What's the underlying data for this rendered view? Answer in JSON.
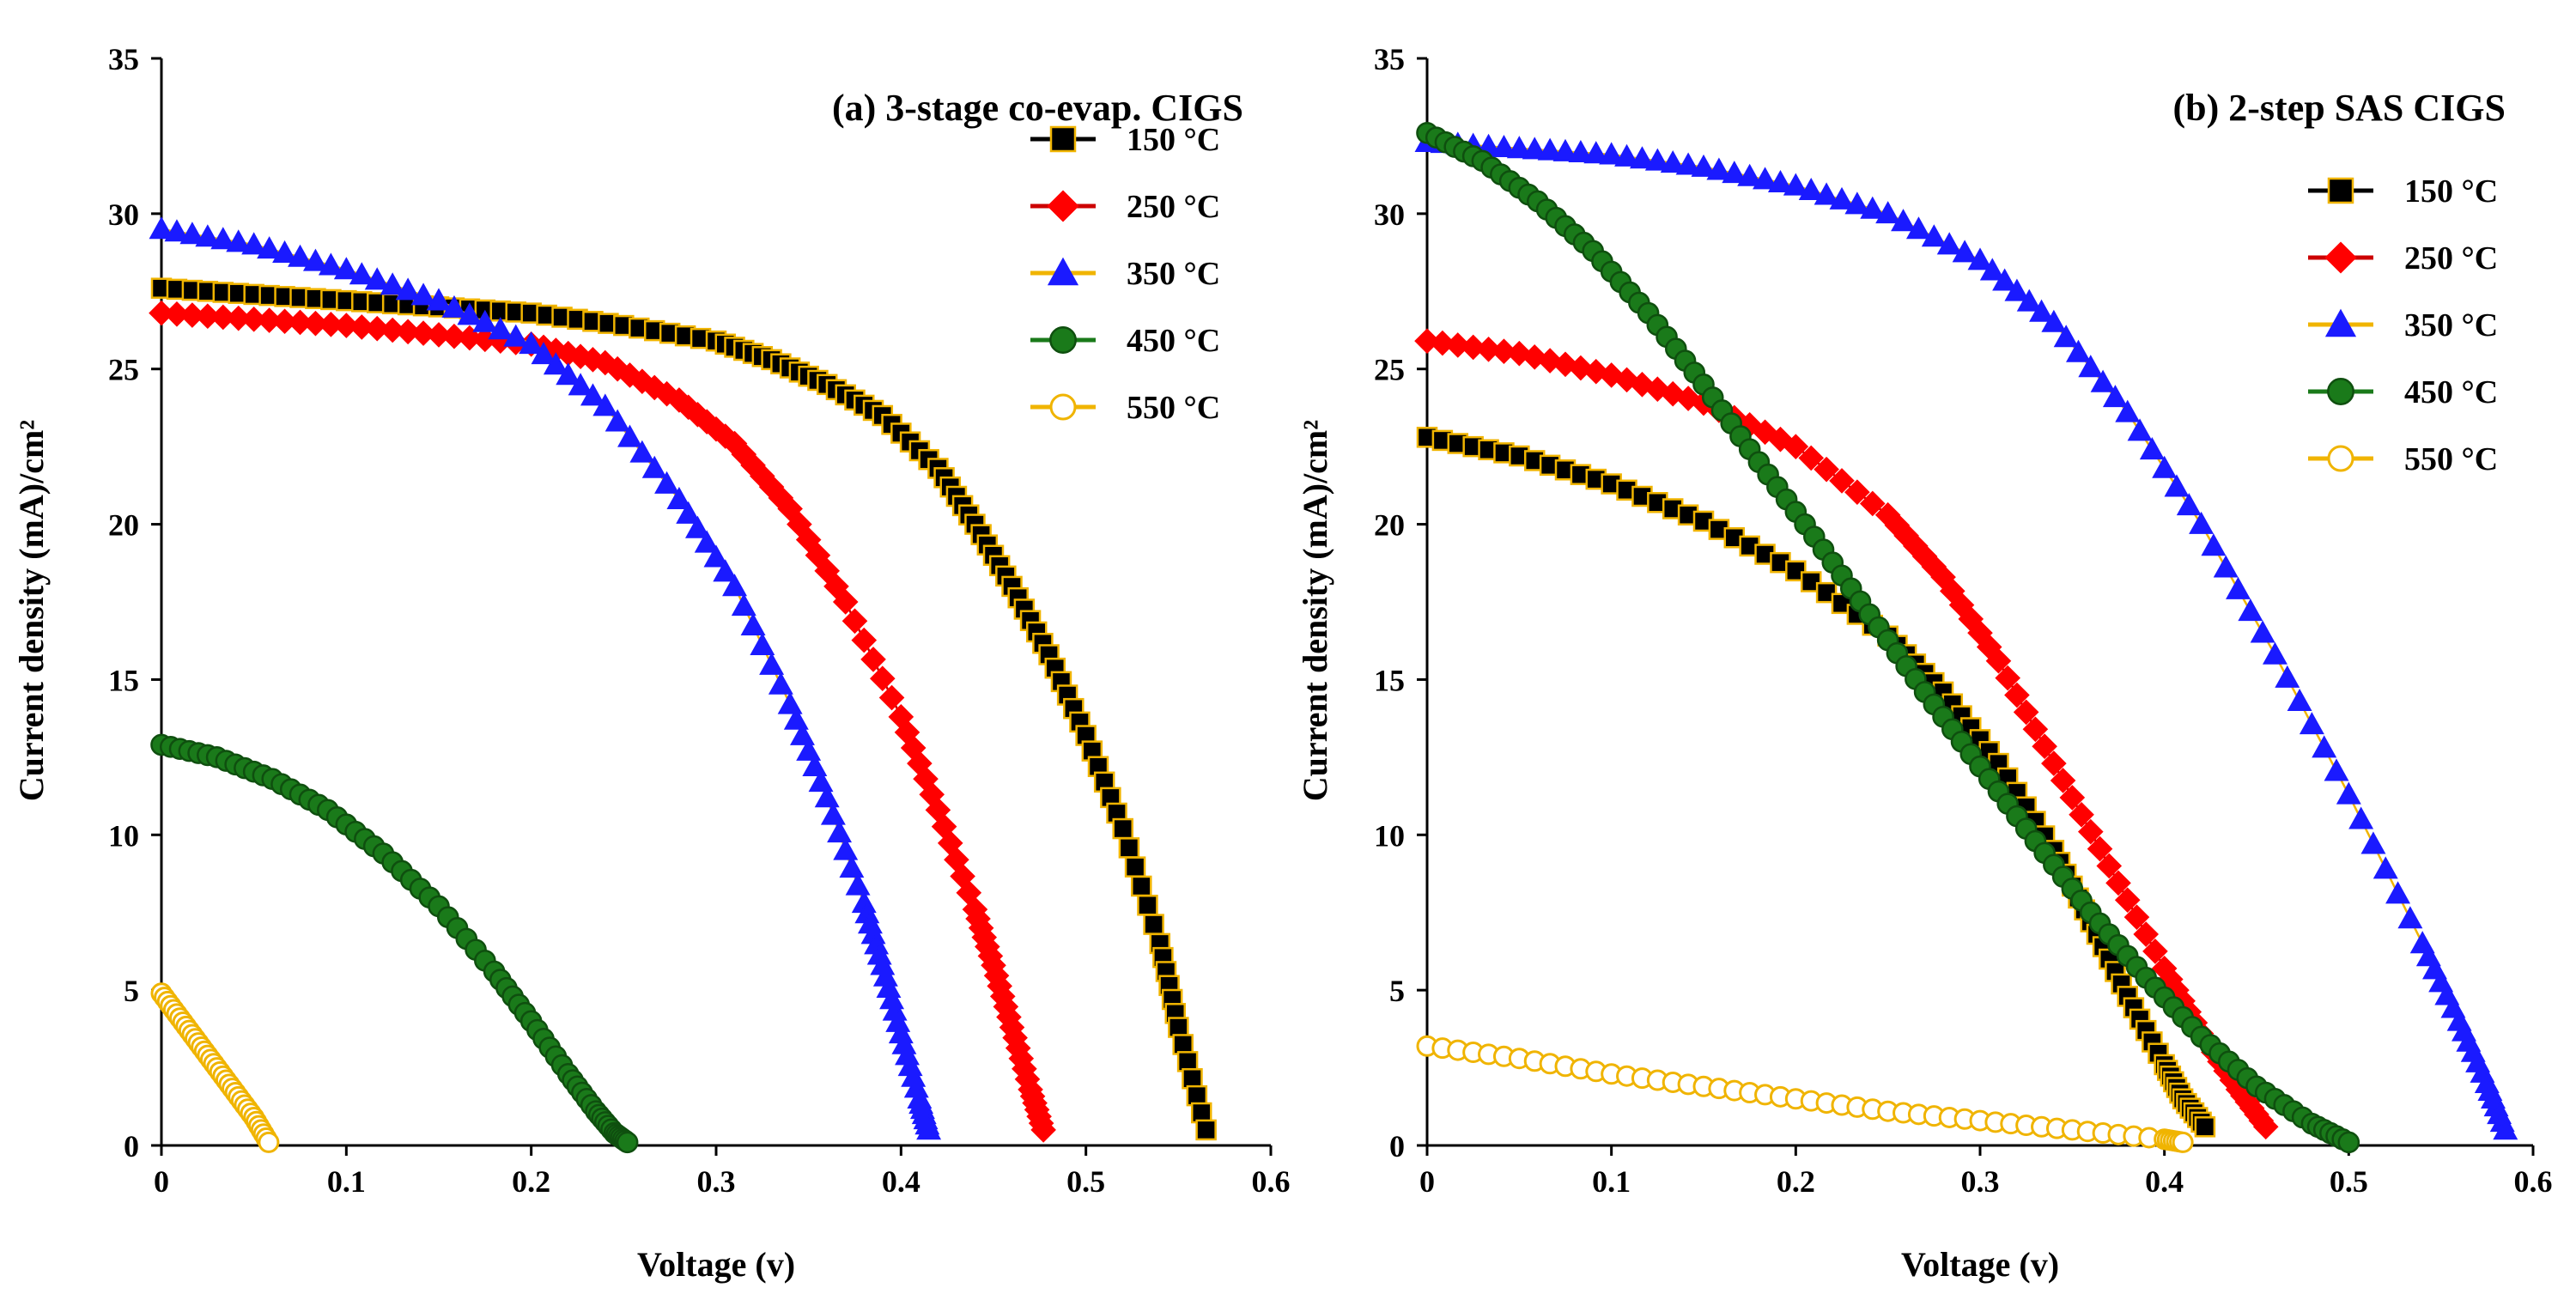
{
  "chart_data": [
    {
      "type": "scatter",
      "title": "(a) 3-stage co-evap. CIGS",
      "xlabel": "Voltage (v)",
      "ylabel": "Current density  (mA)/cm²",
      "xlim": [
        0,
        0.6
      ],
      "ylim": [
        0,
        35
      ],
      "xticks": [
        "0",
        "0.1",
        "0.2",
        "0.3",
        "0.4",
        "0.5",
        "0.6"
      ],
      "yticks": [
        "0",
        "5",
        "10",
        "15",
        "20",
        "25",
        "30",
        "35"
      ],
      "legend_position": "top-right",
      "series": [
        {
          "name": "150 °C",
          "marker": "square",
          "fill": "#000000",
          "stroke": "#f0b400",
          "line": "#000000",
          "x": [
            0,
            0.05,
            0.1,
            0.15,
            0.2,
            0.25,
            0.3,
            0.33,
            0.36,
            0.39,
            0.42,
            0.44,
            0.46,
            0.48,
            0.5,
            0.52,
            0.54,
            0.55,
            0.565
          ],
          "y": [
            27.6,
            27.4,
            27.2,
            27.0,
            26.8,
            26.4,
            25.9,
            25.3,
            24.5,
            23.5,
            21.8,
            20.0,
            18.0,
            15.8,
            13.2,
            10.2,
            6.5,
            3.8,
            0.5
          ]
        },
        {
          "name": "250 °C",
          "marker": "diamond",
          "fill": "#ff0000",
          "stroke": "#ff0000",
          "line": "#cc0000",
          "x": [
            0,
            0.05,
            0.1,
            0.15,
            0.2,
            0.24,
            0.28,
            0.31,
            0.34,
            0.37,
            0.4,
            0.42,
            0.44,
            0.45,
            0.46,
            0.47,
            0.477
          ],
          "y": [
            26.8,
            26.6,
            26.4,
            26.1,
            25.8,
            25.2,
            24.0,
            22.6,
            20.5,
            17.5,
            13.8,
            10.8,
            7.6,
            5.8,
            3.8,
            1.8,
            0.5
          ]
        },
        {
          "name": "350 °C",
          "marker": "triangle",
          "fill": "#1a1aff",
          "stroke": "#1a1aff",
          "line": "#f0b400",
          "x": [
            0,
            0.05,
            0.1,
            0.15,
            0.2,
            0.24,
            0.28,
            0.31,
            0.34,
            0.36,
            0.38,
            0.39,
            0.4,
            0.41,
            0.415
          ],
          "y": [
            29.5,
            29.0,
            28.2,
            27.2,
            25.8,
            23.8,
            20.8,
            18.0,
            14.2,
            11.2,
            7.8,
            5.8,
            3.6,
            1.5,
            0.5
          ]
        },
        {
          "name": "450 °C",
          "marker": "circle",
          "fill": "#1a7a1a",
          "stroke": "#0f4f0f",
          "line": "#1a7a1a",
          "x": [
            0,
            0.03,
            0.06,
            0.09,
            0.12,
            0.15,
            0.18,
            0.2,
            0.22,
            0.235,
            0.245,
            0.252
          ],
          "y": [
            12.9,
            12.5,
            11.8,
            10.8,
            9.4,
            7.7,
            5.6,
            4.0,
            2.3,
            1.1,
            0.4,
            0.1
          ]
        },
        {
          "name": "550 °C",
          "marker": "circle-open",
          "fill": "none",
          "stroke": "#f0b400",
          "line": "#f0b400",
          "x": [
            0,
            0.01,
            0.02,
            0.03,
            0.04,
            0.05,
            0.058
          ],
          "y": [
            4.9,
            4.1,
            3.3,
            2.5,
            1.7,
            0.9,
            0.1
          ]
        }
      ]
    },
    {
      "type": "scatter",
      "title": "(b) 2-step SAS CIGS",
      "xlabel": "Voltage (v)",
      "ylabel": "Current density  (mA)/cm²",
      "xlim": [
        0,
        0.6
      ],
      "ylim": [
        0,
        35
      ],
      "xticks": [
        "0",
        "0.1",
        "0.2",
        "0.3",
        "0.4",
        "0.5",
        "0.6"
      ],
      "yticks": [
        "0",
        "5",
        "10",
        "15",
        "20",
        "25",
        "30",
        "35"
      ],
      "legend_position": "top-right",
      "series": [
        {
          "name": "150 °C",
          "marker": "square",
          "fill": "#000000",
          "stroke": "#f0b400",
          "line": "#000000",
          "x": [
            0,
            0.05,
            0.1,
            0.15,
            0.2,
            0.25,
            0.28,
            0.31,
            0.34,
            0.36,
            0.38,
            0.4,
            0.41,
            0.422
          ],
          "y": [
            22.8,
            22.2,
            21.3,
            20.1,
            18.5,
            16.4,
            14.6,
            12.3,
            9.5,
            7.2,
            4.8,
            2.6,
            1.5,
            0.6
          ]
        },
        {
          "name": "250 °C",
          "marker": "diamond",
          "fill": "#ff0000",
          "stroke": "#ff0000",
          "line": "#cc0000",
          "x": [
            0,
            0.05,
            0.1,
            0.15,
            0.2,
            0.25,
            0.28,
            0.31,
            0.34,
            0.37,
            0.4,
            0.42,
            0.44,
            0.455
          ],
          "y": [
            25.9,
            25.5,
            24.8,
            23.9,
            22.5,
            20.3,
            18.3,
            15.6,
            12.3,
            9.0,
            5.7,
            3.6,
            1.8,
            0.6
          ]
        },
        {
          "name": "350 °C",
          "marker": "triangle",
          "fill": "#1a1aff",
          "stroke": "#1a1aff",
          "line": "#f0b400",
          "x": [
            0,
            0.05,
            0.1,
            0.15,
            0.2,
            0.25,
            0.3,
            0.34,
            0.38,
            0.42,
            0.46,
            0.5,
            0.54,
            0.56,
            0.575,
            0.585
          ],
          "y": [
            32.3,
            32.1,
            31.9,
            31.5,
            30.9,
            30.0,
            28.5,
            26.5,
            23.6,
            20.0,
            15.8,
            11.3,
            6.5,
            4.0,
            2.0,
            0.5
          ]
        },
        {
          "name": "450 °C",
          "marker": "circle",
          "fill": "#1a7a1a",
          "stroke": "#0f4f0f",
          "line": "#1a7a1a",
          "x": [
            0,
            0.03,
            0.06,
            0.09,
            0.12,
            0.15,
            0.18,
            0.21,
            0.24,
            0.27,
            0.3,
            0.33,
            0.36,
            0.39,
            0.42,
            0.45,
            0.48,
            0.5
          ],
          "y": [
            32.6,
            31.7,
            30.4,
            28.8,
            26.8,
            24.5,
            22.0,
            19.6,
            17.1,
            14.6,
            12.2,
            9.8,
            7.5,
            5.4,
            3.5,
            1.9,
            0.7,
            0.1
          ]
        },
        {
          "name": "550 °C",
          "marker": "circle-open",
          "fill": "none",
          "stroke": "#f0b400",
          "line": "#f0b400",
          "x": [
            0,
            0.05,
            0.1,
            0.15,
            0.2,
            0.25,
            0.3,
            0.35,
            0.4,
            0.41
          ],
          "y": [
            3.2,
            2.8,
            2.3,
            1.9,
            1.5,
            1.1,
            0.8,
            0.5,
            0.2,
            0.1
          ]
        }
      ]
    }
  ]
}
